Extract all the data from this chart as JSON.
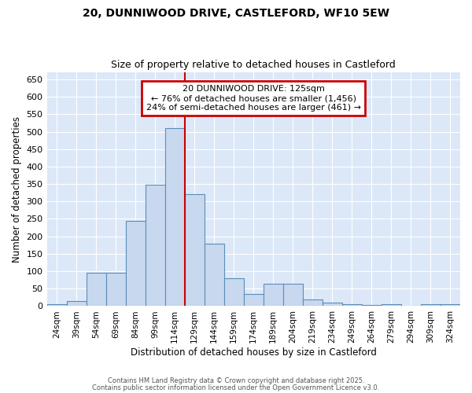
{
  "title": "20, DUNNIWOOD DRIVE, CASTLEFORD, WF10 5EW",
  "subtitle": "Size of property relative to detached houses in Castleford",
  "xlabel": "Distribution of detached houses by size in Castleford",
  "ylabel": "Number of detached properties",
  "bar_labels": [
    "24sqm",
    "39sqm",
    "54sqm",
    "69sqm",
    "84sqm",
    "99sqm",
    "114sqm",
    "129sqm",
    "144sqm",
    "159sqm",
    "174sqm",
    "189sqm",
    "204sqm",
    "219sqm",
    "234sqm",
    "249sqm",
    "264sqm",
    "279sqm",
    "294sqm",
    "309sqm",
    "324sqm"
  ],
  "bar_values": [
    5,
    15,
    95,
    95,
    245,
    348,
    510,
    320,
    180,
    80,
    35,
    63,
    63,
    18,
    10,
    5,
    3,
    5,
    0,
    5,
    5
  ],
  "bar_color": "#c8d8ee",
  "bar_edge_color": "#5b8db8",
  "vline_x": 6.5,
  "vline_color": "#cc0000",
  "annotation_text": "20 DUNNIWOOD DRIVE: 125sqm\n← 76% of detached houses are smaller (1,456)\n24% of semi-detached houses are larger (461) →",
  "annotation_box_color": "#ffffff",
  "annotation_border_color": "#cc0000",
  "fig_bg_color": "#ffffff",
  "plot_bg_color": "#dce8f8",
  "grid_color": "#ffffff",
  "ylim": [
    0,
    670
  ],
  "yticks": [
    0,
    50,
    100,
    150,
    200,
    250,
    300,
    350,
    400,
    450,
    500,
    550,
    600,
    650
  ],
  "footer1": "Contains HM Land Registry data © Crown copyright and database right 2025.",
  "footer2": "Contains public sector information licensed under the Open Government Licence v3.0."
}
